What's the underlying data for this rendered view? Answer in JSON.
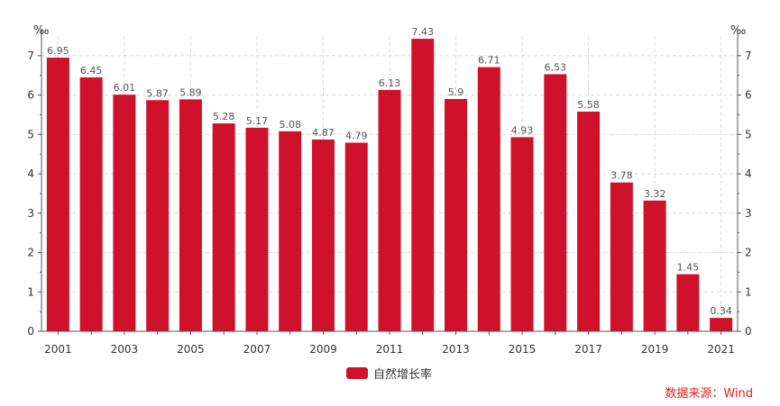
{
  "colors": {
    "bar": "#d0112b",
    "source_text": "#e02020",
    "grid": "#d9d9d9",
    "axis": "#555555"
  },
  "source": "数据来源：Wind",
  "chart_data": {
    "type": "bar",
    "unit_left": "‰",
    "unit_right": "‰",
    "categories": [
      "2001",
      "2002",
      "2003",
      "2004",
      "2005",
      "2006",
      "2007",
      "2008",
      "2009",
      "2010",
      "2011",
      "2012",
      "2013",
      "2014",
      "2015",
      "2016",
      "2017",
      "2018",
      "2019",
      "2020",
      "2021"
    ],
    "x_tick_labels": [
      "2001",
      "2003",
      "2005",
      "2007",
      "2009",
      "2011",
      "2013",
      "2015",
      "2017",
      "2019",
      "2021"
    ],
    "series": [
      {
        "name": "自然增长率",
        "values": [
          6.95,
          6.45,
          6.01,
          5.87,
          5.89,
          5.28,
          5.17,
          5.08,
          4.87,
          4.79,
          6.13,
          7.43,
          5.9,
          6.71,
          4.93,
          6.53,
          5.58,
          3.78,
          3.32,
          1.45,
          0.34
        ]
      }
    ],
    "ylim": [
      0,
      7.5
    ],
    "yticks": [
      0,
      1,
      2,
      3,
      4,
      5,
      6,
      7
    ],
    "grid": true,
    "dual_y_axis": true,
    "legend_position": "bottom-center",
    "data_labels": true
  }
}
